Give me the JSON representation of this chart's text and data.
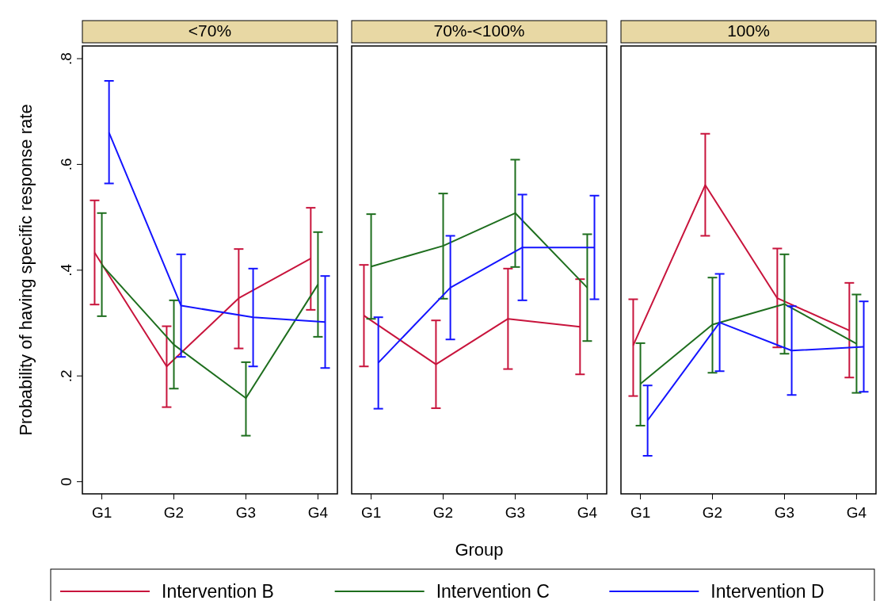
{
  "chart_data": [
    {
      "type": "line",
      "title": "<70%",
      "ylabel": "Probability of having specific response rate",
      "categories": [
        "G1",
        "G2",
        "G3",
        "G4"
      ],
      "ylim": [
        -0.023,
        0.824
      ],
      "yticks": [
        {
          "value": 0,
          "label": "0"
        },
        {
          "value": 0.2,
          "label": ".2"
        },
        {
          "value": 0.4,
          "label": ".4"
        },
        {
          "value": 0.6,
          "label": ".6"
        },
        {
          "value": 0.8,
          "label": ".8"
        }
      ],
      "legend": "bottom",
      "series": [
        {
          "name": "Intervention B",
          "color": "#c8143c",
          "values": [
            0.433,
            0.218,
            0.347,
            0.422
          ],
          "errors": [
            [
              0.335,
              0.532
            ],
            [
              0.141,
              0.294
            ],
            [
              0.252,
              0.44
            ],
            [
              0.325,
              0.518
            ]
          ]
        },
        {
          "name": "Intervention C",
          "color": "#1e6e1e",
          "values": [
            0.41,
            0.259,
            0.158,
            0.373
          ],
          "errors": [
            [
              0.313,
              0.508
            ],
            [
              0.176,
              0.343
            ],
            [
              0.087,
              0.226
            ],
            [
              0.274,
              0.472
            ]
          ]
        },
        {
          "name": "Intervention D",
          "color": "#1414ff",
          "values": [
            0.66,
            0.333,
            0.311,
            0.302
          ],
          "errors": [
            [
              0.564,
              0.758
            ],
            [
              0.236,
              0.43
            ],
            [
              0.218,
              0.403
            ],
            [
              0.215,
              0.389
            ]
          ]
        }
      ]
    },
    {
      "type": "line",
      "title": "70%-<100%",
      "xlabel": "Group",
      "categories": [
        "G1",
        "G2",
        "G3",
        "G4"
      ],
      "ylim": [
        -0.023,
        0.824
      ],
      "tick_labels": "x",
      "series": [
        {
          "color": "#c8143c",
          "values": [
            0.314,
            0.222,
            0.308,
            0.293
          ],
          "errors": [
            [
              0.218,
              0.41
            ],
            [
              0.139,
              0.305
            ],
            [
              0.213,
              0.403
            ],
            [
              0.203,
              0.383
            ]
          ]
        },
        {
          "color": "#1e6e1e",
          "values": [
            0.407,
            0.446,
            0.508,
            0.367
          ],
          "errors": [
            [
              0.308,
              0.506
            ],
            [
              0.346,
              0.545
            ],
            [
              0.406,
              0.609
            ],
            [
              0.266,
              0.468
            ]
          ]
        },
        {
          "color": "#1414ff",
          "values": [
            0.225,
            0.367,
            0.443,
            0.443
          ],
          "errors": [
            [
              0.138,
              0.311
            ],
            [
              0.269,
              0.465
            ],
            [
              0.343,
              0.543
            ],
            [
              0.345,
              0.541
            ]
          ]
        }
      ]
    },
    {
      "type": "line",
      "title": "100%",
      "categories": [
        "G1",
        "G2",
        "G3",
        "G4"
      ],
      "ylim": [
        -0.023,
        0.824
      ],
      "tick_labels": "x",
      "series": [
        {
          "color": "#c8143c",
          "values": [
            0.258,
            0.561,
            0.347,
            0.286
          ],
          "errors": [
            [
              0.162,
              0.345
            ],
            [
              0.465,
              0.658
            ],
            [
              0.254,
              0.441
            ],
            [
              0.197,
              0.376
            ]
          ]
        },
        {
          "color": "#1e6e1e",
          "values": [
            0.185,
            0.297,
            0.336,
            0.261
          ],
          "errors": [
            [
              0.106,
              0.262
            ],
            [
              0.206,
              0.386
            ],
            [
              0.242,
              0.43
            ],
            [
              0.168,
              0.354
            ]
          ]
        },
        {
          "color": "#1414ff",
          "values": [
            0.116,
            0.301,
            0.248,
            0.255
          ],
          "errors": [
            [
              0.049,
              0.182
            ],
            [
              0.209,
              0.393
            ],
            [
              0.164,
              0.332
            ],
            [
              0.17,
              0.341
            ]
          ]
        }
      ]
    }
  ]
}
